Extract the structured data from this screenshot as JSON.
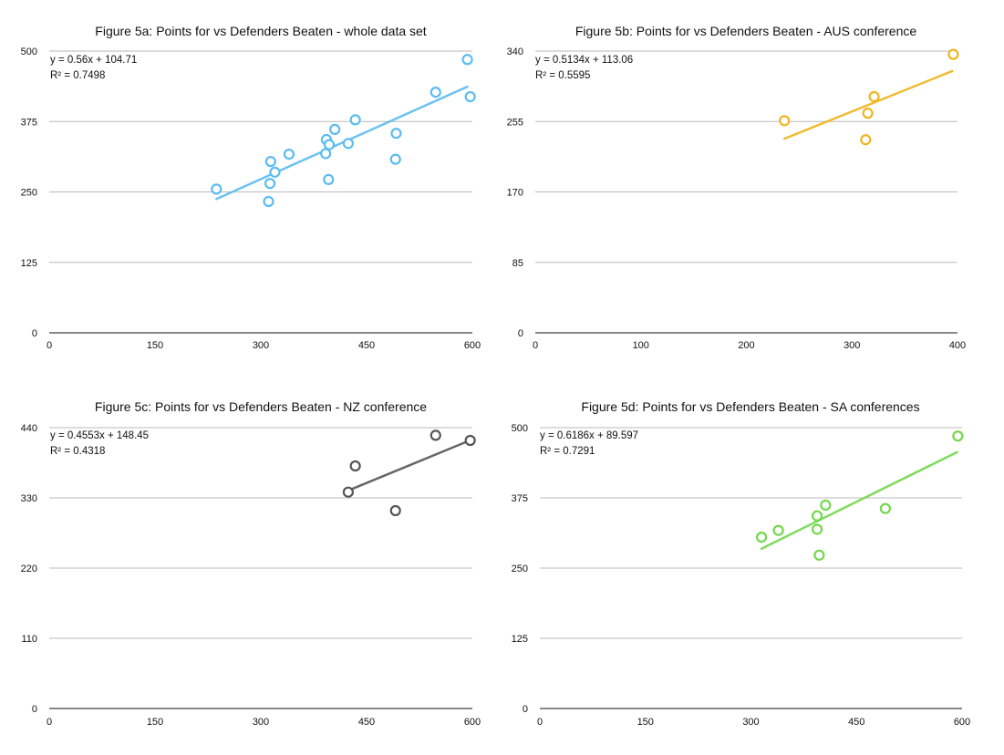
{
  "chart_data": [
    {
      "type": "scatter",
      "title": "Figure 5a: Points for vs Defenders Beaten - whole data set",
      "xlabel": "",
      "ylabel": "",
      "xlim": [
        0,
        600
      ],
      "ylim": [
        0,
        500
      ],
      "xticks": [
        "0",
        "150",
        "300",
        "450",
        "600"
      ],
      "yticks": [
        "0",
        "125",
        "250",
        "375",
        "500"
      ],
      "grid": "horizontal",
      "color": "#5bbcf0",
      "trendline": {
        "slope": 0.56,
        "intercept": 104.71,
        "x_range": [
          237,
          593
        ]
      },
      "equation": "y = 0.56x + 104.71",
      "r_squared": "R² = 0.7498",
      "points": [
        [
          237,
          255
        ],
        [
          311,
          233
        ],
        [
          313,
          265
        ],
        [
          314,
          304
        ],
        [
          320,
          285
        ],
        [
          340,
          317
        ],
        [
          392,
          318
        ],
        [
          393,
          343
        ],
        [
          396,
          272
        ],
        [
          397,
          334
        ],
        [
          405,
          361
        ],
        [
          424,
          336
        ],
        [
          434,
          378
        ],
        [
          492,
          354
        ],
        [
          491,
          308
        ],
        [
          548,
          427
        ],
        [
          593,
          485
        ],
        [
          597,
          419
        ]
      ]
    },
    {
      "type": "scatter",
      "title": "Figure 5b: Points for vs Defenders Beaten - AUS conference",
      "xlabel": "",
      "ylabel": "",
      "xlim": [
        0,
        400
      ],
      "ylim": [
        0,
        340
      ],
      "xticks": [
        "0",
        "100",
        "200",
        "300",
        "400"
      ],
      "yticks": [
        "0",
        "85",
        "170",
        "255",
        "340"
      ],
      "grid": "horizontal",
      "color": "#f0b51c",
      "trendline": {
        "slope": 0.5134,
        "intercept": 113.06,
        "x_range": [
          236,
          395
        ]
      },
      "equation": "y = 0.5134x + 113.06",
      "r_squared": "R² = 0.5595",
      "points": [
        [
          236,
          256
        ],
        [
          313,
          233
        ],
        [
          315,
          265
        ],
        [
          321,
          285
        ],
        [
          396,
          336
        ]
      ]
    },
    {
      "type": "scatter",
      "title": "Figure 5c: Points for vs Defenders Beaten - NZ conference",
      "xlabel": "",
      "ylabel": "",
      "xlim": [
        0,
        600
      ],
      "ylim": [
        0,
        440
      ],
      "xticks": [
        "0",
        "150",
        "300",
        "450",
        "600"
      ],
      "yticks": [
        "0",
        "110",
        "220",
        "330",
        "440"
      ],
      "grid": "horizontal",
      "color": "#555555",
      "trendline": {
        "slope": 0.4553,
        "intercept": 148.45,
        "x_range": [
          424,
          597
        ]
      },
      "equation": "y = 0.4553x + 148.45",
      "r_squared": "R² = 0.4318",
      "points": [
        [
          424,
          339
        ],
        [
          434,
          380
        ],
        [
          491,
          310
        ],
        [
          548,
          428
        ],
        [
          597,
          420
        ]
      ]
    },
    {
      "type": "scatter",
      "title": "Figure 5d: Points for vs Defenders Beaten - SA conferences",
      "xlabel": "",
      "ylabel": "",
      "xlim": [
        0,
        600
      ],
      "ylim": [
        0,
        500
      ],
      "xticks": [
        "0",
        "150",
        "300",
        "450",
        "600"
      ],
      "yticks": [
        "0",
        "125",
        "250",
        "375",
        "500"
      ],
      "grid": "horizontal",
      "color": "#72d84a",
      "trendline": {
        "slope": 0.6186,
        "intercept": 89.597,
        "x_range": [
          315,
          593
        ]
      },
      "equation": "y = 0.6186x + 89.597",
      "r_squared": "R² = 0.7291",
      "points": [
        [
          315,
          305
        ],
        [
          339,
          317
        ],
        [
          394,
          343
        ],
        [
          394,
          319
        ],
        [
          397,
          273
        ],
        [
          406,
          362
        ],
        [
          491,
          356
        ],
        [
          594,
          485
        ]
      ]
    }
  ]
}
